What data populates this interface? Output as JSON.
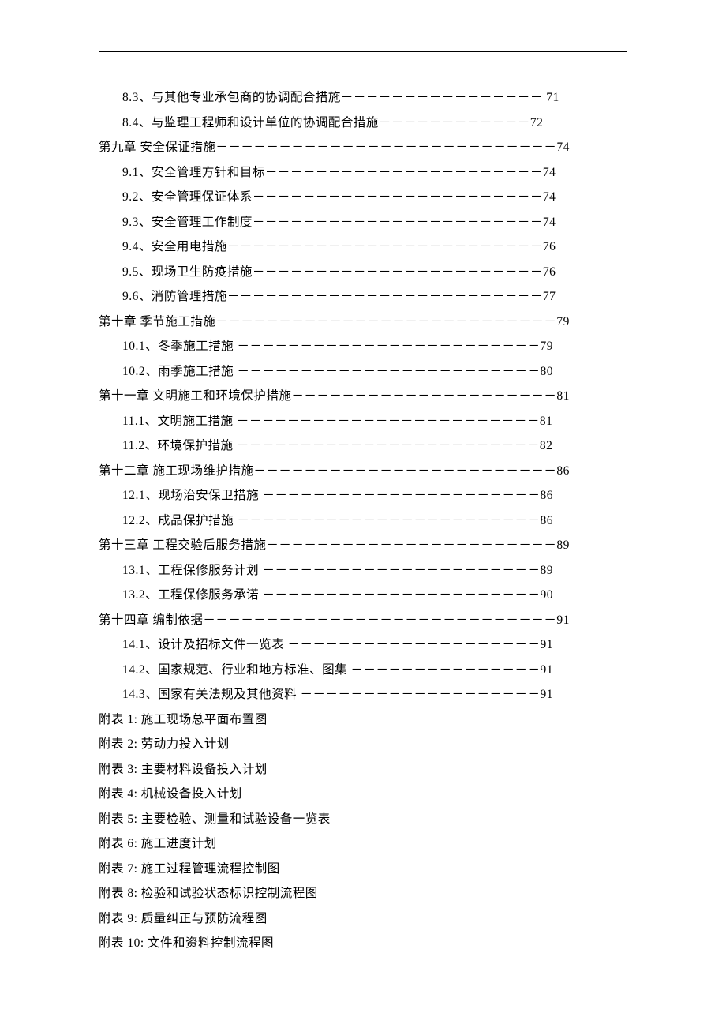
{
  "entries": [
    {
      "indent": "sub",
      "text": "8.3、与其他专业承包商的协调配合措施－－－－－－－－－－－－－－－－ 71"
    },
    {
      "indent": "sub",
      "text": "8.4、与监理工程师和设计单位的协调配合措施－－－－－－－－－－－－72"
    },
    {
      "indent": "chapter",
      "text": "第九章 安全保证措施－－－－－－－－－－－－－－－－－－－－－－－－－－－74"
    },
    {
      "indent": "sub",
      "text": "9.1、安全管理方针和目标－－－－－－－－－－－－－－－－－－－－－－74"
    },
    {
      "indent": "sub",
      "text": "9.2、安全管理保证体系－－－－－－－－－－－－－－－－－－－－－－－74"
    },
    {
      "indent": "sub",
      "text": "9.3、安全管理工作制度－－－－－－－－－－－－－－－－－－－－－－－74"
    },
    {
      "indent": "sub",
      "text": "9.4、安全用电措施－－－－－－－－－－－－－－－－－－－－－－－－－76"
    },
    {
      "indent": "sub",
      "text": "9.5、现场卫生防疫措施－－－－－－－－－－－－－－－－－－－－－－－76"
    },
    {
      "indent": "sub",
      "text": "9.6、消防管理措施－－－－－－－－－－－－－－－－－－－－－－－－－77"
    },
    {
      "indent": "chapter",
      "text": "第十章 季节施工措施－－－－－－－－－－－－－－－－－－－－－－－－－－－79"
    },
    {
      "indent": "sub",
      "text": "10.1、冬季施工措施 －－－－－－－－－－－－－－－－－－－－－－－－79"
    },
    {
      "indent": "sub",
      "text": "10.2、雨季施工措施 －－－－－－－－－－－－－－－－－－－－－－－－80"
    },
    {
      "indent": "chapter",
      "text": "第十一章 文明施工和环境保护措施－－－－－－－－－－－－－－－－－－－－－81"
    },
    {
      "indent": "sub",
      "text": "11.1、文明施工措施 －－－－－－－－－－－－－－－－－－－－－－－－81"
    },
    {
      "indent": "sub",
      "text": "11.2、环境保护措施 －－－－－－－－－－－－－－－－－－－－－－－－82"
    },
    {
      "indent": "chapter",
      "text": "第十二章 施工现场维护措施－－－－－－－－－－－－－－－－－－－－－－－－86"
    },
    {
      "indent": "sub",
      "text": "12.1、现场治安保卫措施 －－－－－－－－－－－－－－－－－－－－－－86"
    },
    {
      "indent": "sub",
      "text": "12.2、成品保护措施 －－－－－－－－－－－－－－－－－－－－－－－－86"
    },
    {
      "indent": "chapter",
      "text": "第十三章 工程交验后服务措施－－－－－－－－－－－－－－－－－－－－－－－89"
    },
    {
      "indent": "sub",
      "text": "13.1、工程保修服务计划 －－－－－－－－－－－－－－－－－－－－－－89"
    },
    {
      "indent": "sub",
      "text": "13.2、工程保修服务承诺 －－－－－－－－－－－－－－－－－－－－－－90"
    },
    {
      "indent": "chapter",
      "text": "第十四章 编制依据－－－－－－－－－－－－－－－－－－－－－－－－－－－－91"
    },
    {
      "indent": "sub",
      "text": "14.1、设计及招标文件一览表 －－－－－－－－－－－－－－－－－－－－91"
    },
    {
      "indent": "sub",
      "text": "14.2、国家规范、行业和地方标准、图集 －－－－－－－－－－－－－－－91"
    },
    {
      "indent": "sub",
      "text": "14.3、国家有关法规及其他资料 －－－－－－－－－－－－－－－－－－－91"
    },
    {
      "indent": "appendix",
      "text": "附表 1: 施工现场总平面布置图"
    },
    {
      "indent": "appendix",
      "text": "附表 2: 劳动力投入计划"
    },
    {
      "indent": "appendix",
      "text": "附表 3: 主要材料设备投入计划"
    },
    {
      "indent": "appendix",
      "text": "附表 4: 机械设备投入计划"
    },
    {
      "indent": "appendix",
      "text": "附表 5: 主要检验、测量和试验设备一览表"
    },
    {
      "indent": "appendix",
      "text": "附表 6: 施工进度计划"
    },
    {
      "indent": "appendix",
      "text": "附表 7: 施工过程管理流程控制图"
    },
    {
      "indent": "appendix",
      "text": "附表 8: 检验和试验状态标识控制流程图"
    },
    {
      "indent": "appendix",
      "text": "附表 9: 质量纠正与预防流程图"
    },
    {
      "indent": "appendix",
      "text": "附表 10: 文件和资料控制流程图"
    }
  ]
}
